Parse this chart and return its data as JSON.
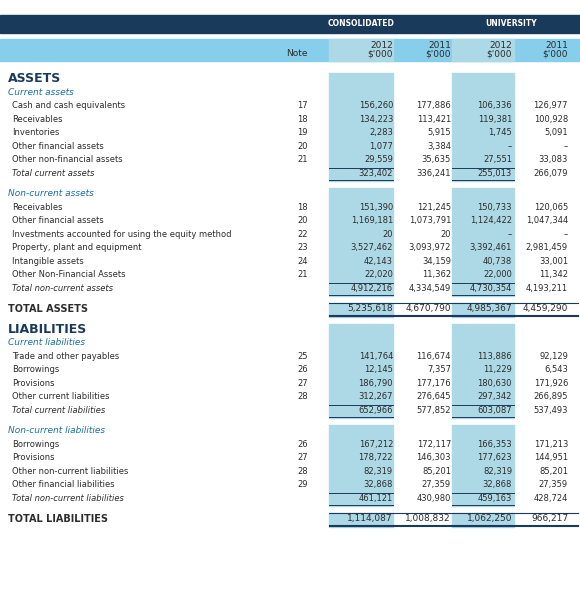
{
  "header_bg": "#1a3a5c",
  "subheader_bg": "#87ceeb",
  "col_bg": "#add8e6",
  "white_bg": "#ffffff",
  "total_line_color": "#1a3a5c",
  "section_label_color": "#1a6fa0",
  "assets_color": "#1a3a5c",
  "text_color": "#2c2c2c",
  "header_text_color": "#ffffff",
  "rows": [
    {
      "label": "ASSETS",
      "type": "section_header",
      "note": "",
      "c2012": "",
      "c2011": "",
      "u2012": "",
      "u2011": ""
    },
    {
      "label": "Current assets",
      "type": "subsection",
      "note": "",
      "c2012": "",
      "c2011": "",
      "u2012": "",
      "u2011": ""
    },
    {
      "label": "Cash and cash equivalents",
      "type": "data",
      "note": "17",
      "c2012": "156,260",
      "c2011": "177,886",
      "u2012": "106,336",
      "u2011": "126,977"
    },
    {
      "label": "Receivables",
      "type": "data",
      "note": "18",
      "c2012": "134,223",
      "c2011": "113,421",
      "u2012": "119,381",
      "u2011": "100,928"
    },
    {
      "label": "Inventories",
      "type": "data",
      "note": "19",
      "c2012": "2,283",
      "c2011": "5,915",
      "u2012": "1,745",
      "u2011": "5,091"
    },
    {
      "label": "Other financial assets",
      "type": "data",
      "note": "20",
      "c2012": "1,077",
      "c2011": "3,384",
      "u2012": "–",
      "u2011": "–"
    },
    {
      "label": "Other non-financial assets",
      "type": "data",
      "note": "21",
      "c2012": "29,559",
      "c2011": "35,635",
      "u2012": "27,551",
      "u2011": "33,083"
    },
    {
      "label": "Total current assets",
      "type": "total",
      "note": "",
      "c2012": "323,402",
      "c2011": "336,241",
      "u2012": "255,013",
      "u2011": "266,079"
    },
    {
      "label": "",
      "type": "spacer",
      "note": "",
      "c2012": "",
      "c2011": "",
      "u2012": "",
      "u2011": ""
    },
    {
      "label": "Non-current assets",
      "type": "subsection",
      "note": "",
      "c2012": "",
      "c2011": "",
      "u2012": "",
      "u2011": ""
    },
    {
      "label": "Receivables",
      "type": "data",
      "note": "18",
      "c2012": "151,390",
      "c2011": "121,245",
      "u2012": "150,733",
      "u2011": "120,065"
    },
    {
      "label": "Other financial assets",
      "type": "data",
      "note": "20",
      "c2012": "1,169,181",
      "c2011": "1,073,791",
      "u2012": "1,124,422",
      "u2011": "1,047,344"
    },
    {
      "label": "Investments accounted for using the equity method",
      "type": "data",
      "note": "22",
      "c2012": "20",
      "c2011": "20",
      "u2012": "–",
      "u2011": "–"
    },
    {
      "label": "Property, plant and equipment",
      "type": "data",
      "note": "23",
      "c2012": "3,527,462",
      "c2011": "3,093,972",
      "u2012": "3,392,461",
      "u2011": "2,981,459"
    },
    {
      "label": "Intangible assets",
      "type": "data",
      "note": "24",
      "c2012": "42,143",
      "c2011": "34,159",
      "u2012": "40,738",
      "u2011": "33,001"
    },
    {
      "label": "Other Non-Financial Assets",
      "type": "data",
      "note": "21",
      "c2012": "22,020",
      "c2011": "11,362",
      "u2012": "22,000",
      "u2011": "11,342"
    },
    {
      "label": "Total non-current assets",
      "type": "total",
      "note": "",
      "c2012": "4,912,216",
      "c2011": "4,334,549",
      "u2012": "4,730,354",
      "u2011": "4,193,211"
    },
    {
      "label": "",
      "type": "spacer",
      "note": "",
      "c2012": "",
      "c2011": "",
      "u2012": "",
      "u2011": ""
    },
    {
      "label": "TOTAL ASSETS",
      "type": "grand_total",
      "note": "",
      "c2012": "5,235,618",
      "c2011": "4,670,790",
      "u2012": "4,985,367",
      "u2011": "4,459,290"
    },
    {
      "label": "",
      "type": "spacer",
      "note": "",
      "c2012": "",
      "c2011": "",
      "u2012": "",
      "u2011": ""
    },
    {
      "label": "LIABILITIES",
      "type": "section_header",
      "note": "",
      "c2012": "",
      "c2011": "",
      "u2012": "",
      "u2011": ""
    },
    {
      "label": "Current liabilities",
      "type": "subsection",
      "note": "",
      "c2012": "",
      "c2011": "",
      "u2012": "",
      "u2011": ""
    },
    {
      "label": "Trade and other payables",
      "type": "data",
      "note": "25",
      "c2012": "141,764",
      "c2011": "116,674",
      "u2012": "113,886",
      "u2011": "92,129"
    },
    {
      "label": "Borrowings",
      "type": "data",
      "note": "26",
      "c2012": "12,145",
      "c2011": "7,357",
      "u2012": "11,229",
      "u2011": "6,543"
    },
    {
      "label": "Provisions",
      "type": "data",
      "note": "27",
      "c2012": "186,790",
      "c2011": "177,176",
      "u2012": "180,630",
      "u2011": "171,926"
    },
    {
      "label": "Other current liabilities",
      "type": "data",
      "note": "28",
      "c2012": "312,267",
      "c2011": "276,645",
      "u2012": "297,342",
      "u2011": "266,895"
    },
    {
      "label": "Total current liabilities",
      "type": "total",
      "note": "",
      "c2012": "652,966",
      "c2011": "577,852",
      "u2012": "603,087",
      "u2011": "537,493"
    },
    {
      "label": "",
      "type": "spacer",
      "note": "",
      "c2012": "",
      "c2011": "",
      "u2012": "",
      "u2011": ""
    },
    {
      "label": "Non-current liabilities",
      "type": "subsection",
      "note": "",
      "c2012": "",
      "c2011": "",
      "u2012": "",
      "u2011": ""
    },
    {
      "label": "Borrowings",
      "type": "data",
      "note": "26",
      "c2012": "167,212",
      "c2011": "172,117",
      "u2012": "166,353",
      "u2011": "171,213"
    },
    {
      "label": "Provisions",
      "type": "data",
      "note": "27",
      "c2012": "178,722",
      "c2011": "146,303",
      "u2012": "177,623",
      "u2011": "144,951"
    },
    {
      "label": "Other non-current liabilities",
      "type": "data",
      "note": "28",
      "c2012": "82,319",
      "c2011": "85,201",
      "u2012": "82,319",
      "u2011": "85,201"
    },
    {
      "label": "Other financial liabilities",
      "type": "data",
      "note": "29",
      "c2012": "32,868",
      "c2011": "27,359",
      "u2012": "32,868",
      "u2011": "27,359"
    },
    {
      "label": "Total non-current liabilities",
      "type": "total",
      "note": "",
      "c2012": "461,121",
      "c2011": "430,980",
      "u2012": "459,163",
      "u2011": "428,724"
    },
    {
      "label": "",
      "type": "spacer",
      "note": "",
      "c2012": "",
      "c2011": "",
      "u2012": "",
      "u2011": ""
    },
    {
      "label": "TOTAL LIABILITIES",
      "type": "grand_total",
      "note": "",
      "c2012": "1,114,087",
      "c2011": "1,008,832",
      "u2012": "1,062,250",
      "u2011": "966,217"
    }
  ]
}
